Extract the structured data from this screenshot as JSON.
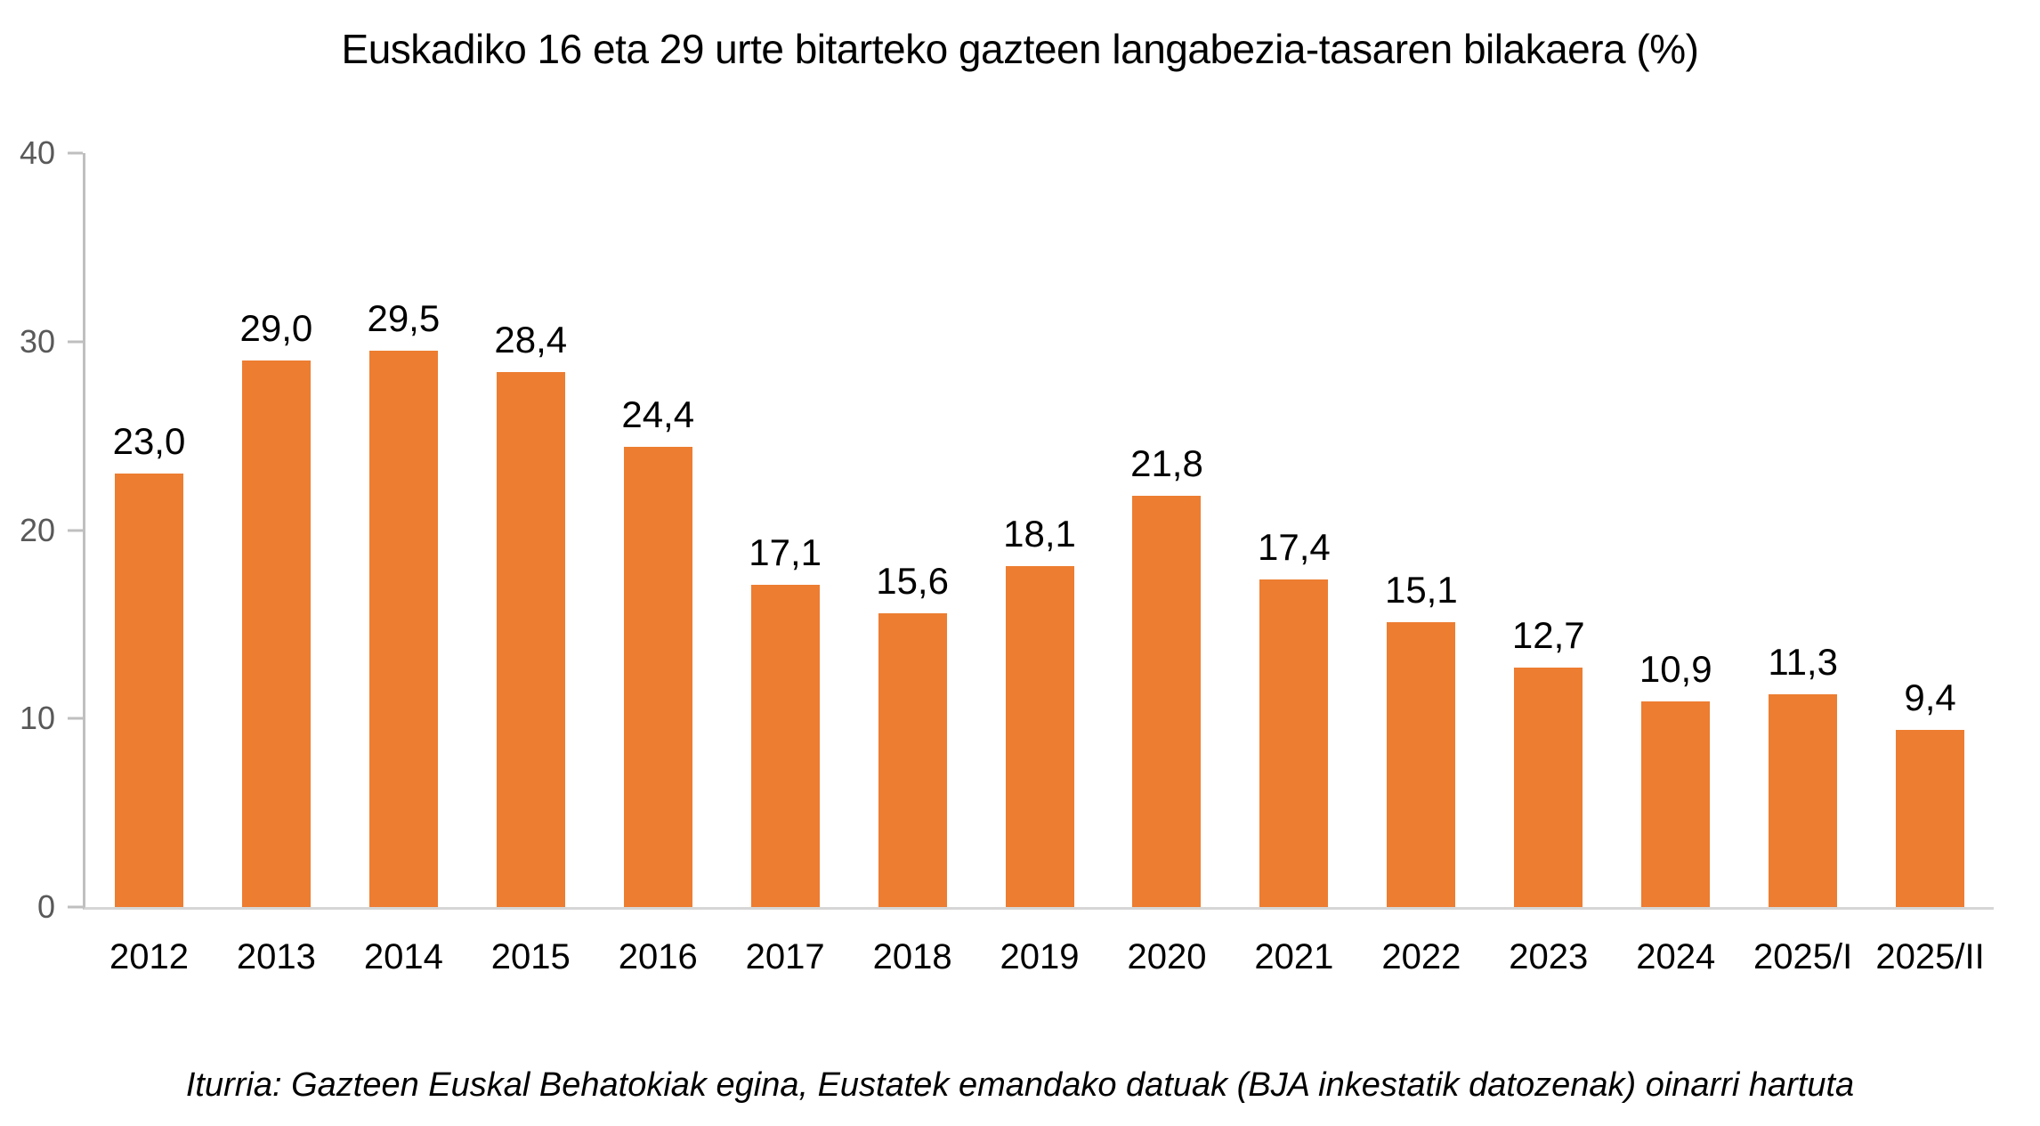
{
  "title": "Euskadiko 16 eta 29 urte bitarteko gazteen langabezia-tasaren bilakaera (%)",
  "source_note": "Iturria: Gazteen Euskal Behatokiak egina, Eustatek emandako datuak (BJA inkestatik datozenak) oinarri hartuta",
  "colors": {
    "bar": "#ED7D31",
    "axis_line": "#BFBFBF",
    "baseline": "#D6D6D6",
    "tick_label": "#595959",
    "text": "#000000",
    "background": "#FFFFFF"
  },
  "chart_data": {
    "type": "bar",
    "title": "Euskadiko 16 eta 29 urte bitarteko gazteen langabezia-tasaren bilakaera (%)",
    "categories": [
      "2012",
      "2013",
      "2014",
      "2015",
      "2016",
      "2017",
      "2018",
      "2019",
      "2020",
      "2021",
      "2022",
      "2023",
      "2024",
      "2025/I",
      "2025/II"
    ],
    "values": [
      23.0,
      29.0,
      29.5,
      28.4,
      24.4,
      17.1,
      15.6,
      18.1,
      21.8,
      17.4,
      15.1,
      12.7,
      10.9,
      11.3,
      9.4
    ],
    "value_labels": [
      "23,0",
      "29,0",
      "29,5",
      "28,4",
      "24,4",
      "17,1",
      "15,6",
      "18,1",
      "21,8",
      "17,4",
      "15,1",
      "12,7",
      "10,9",
      "11,3",
      "9,4"
    ],
    "xlabel": "",
    "ylabel": "",
    "ylim": [
      0,
      40
    ],
    "yticks": [
      0,
      10,
      20,
      30,
      40
    ],
    "ytick_labels": [
      "0",
      "10",
      "20",
      "30",
      "40"
    ],
    "grid": false,
    "legend": "none",
    "bar_color": "#ED7D31",
    "source": "Iturria: Gazteen Euskal Behatokiak egina, Eustatek emandako datuak (BJA inkestatik datozenak) oinarri hartuta"
  }
}
